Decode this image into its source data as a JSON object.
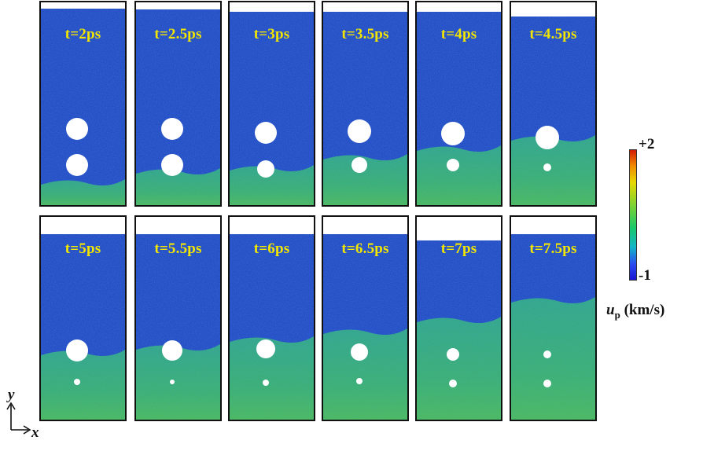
{
  "panels": [
    {
      "label": "t=2ps"
    },
    {
      "label": "t=2.5ps"
    },
    {
      "label": "t=3ps"
    },
    {
      "label": "t=3.5ps"
    },
    {
      "label": "t=4ps"
    },
    {
      "label": "t=4.5ps"
    },
    {
      "label": "t=5ps"
    },
    {
      "label": "t=5.5ps"
    },
    {
      "label": "t=6ps"
    },
    {
      "label": "t=6.5ps"
    },
    {
      "label": "t=7ps"
    },
    {
      "label": "t=7.5ps"
    }
  ],
  "colorbar": {
    "max_label": "+2",
    "min_label": "-1",
    "quantity_symbol": "u",
    "quantity_subscript": "p",
    "unit": " (km/s)"
  },
  "axes": {
    "x_label": "x",
    "y_label": "y"
  },
  "colors": {
    "background_blue": "#1f3fbf",
    "shocked_green": "#2aa872",
    "label_yellow": "#f2e600"
  }
}
